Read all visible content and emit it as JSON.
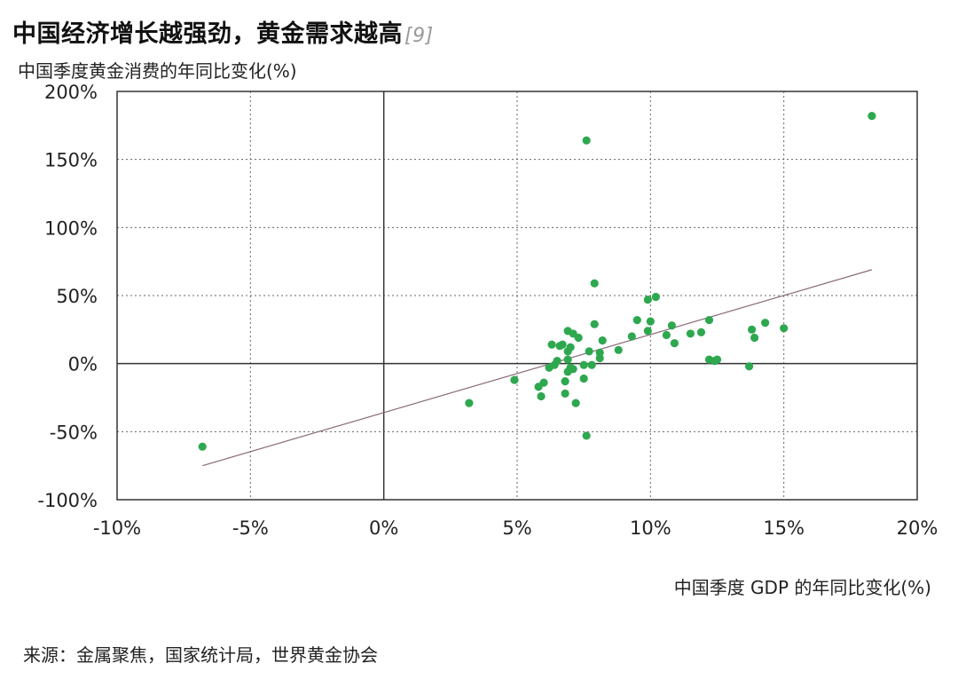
{
  "title": "中国经济增长越强劲，黄金需求越高",
  "title_ref": "[9]",
  "source": "来源：金属聚焦，国家统计局，世界黄金协会",
  "chart_data": {
    "type": "scatter",
    "title": "中国经济增长越强劲，黄金需求越高",
    "xlabel": "中国季度 GDP 的年同比变化(%)",
    "ylabel": "中国季度黄金消费的年同比变化(%)",
    "xlim": [
      -10,
      20
    ],
    "ylim": [
      -100,
      200
    ],
    "x_ticks": [
      -10,
      -5,
      0,
      5,
      10,
      15,
      20
    ],
    "y_ticks": [
      -100,
      -50,
      0,
      50,
      100,
      150,
      200
    ],
    "x_tick_labels": [
      "-10%",
      "-5%",
      "0%",
      "5%",
      "10%",
      "15%",
      "20%"
    ],
    "y_tick_labels": [
      "-100%",
      "-50%",
      "0%",
      "50%",
      "100%",
      "150%",
      "200%"
    ],
    "grid": true,
    "point_color": "#2ea84f",
    "trend_color": "#8a6a7a",
    "trendline": {
      "x": [
        -6.8,
        18.3
      ],
      "y": [
        -75,
        69
      ]
    },
    "points": [
      {
        "x": -6.8,
        "y": -61
      },
      {
        "x": 3.2,
        "y": -29
      },
      {
        "x": 4.9,
        "y": -12
      },
      {
        "x": 5.8,
        "y": -17
      },
      {
        "x": 5.9,
        "y": -24
      },
      {
        "x": 6.0,
        "y": -14
      },
      {
        "x": 6.2,
        "y": -3
      },
      {
        "x": 6.3,
        "y": 14
      },
      {
        "x": 6.4,
        "y": -1
      },
      {
        "x": 6.5,
        "y": 2
      },
      {
        "x": 6.6,
        "y": 13
      },
      {
        "x": 6.7,
        "y": 14
      },
      {
        "x": 6.8,
        "y": -22
      },
      {
        "x": 6.8,
        "y": -13
      },
      {
        "x": 6.9,
        "y": -6
      },
      {
        "x": 6.9,
        "y": 3
      },
      {
        "x": 6.9,
        "y": 9
      },
      {
        "x": 6.9,
        "y": 24
      },
      {
        "x": 7.0,
        "y": -3
      },
      {
        "x": 7.0,
        "y": 12
      },
      {
        "x": 7.1,
        "y": -4
      },
      {
        "x": 7.1,
        "y": 22
      },
      {
        "x": 7.2,
        "y": -29
      },
      {
        "x": 7.3,
        "y": 19
      },
      {
        "x": 7.5,
        "y": -11
      },
      {
        "x": 7.5,
        "y": -1
      },
      {
        "x": 7.6,
        "y": 164
      },
      {
        "x": 7.6,
        "y": -53
      },
      {
        "x": 7.7,
        "y": 9
      },
      {
        "x": 7.8,
        "y": -1
      },
      {
        "x": 7.9,
        "y": 29
      },
      {
        "x": 7.9,
        "y": 59
      },
      {
        "x": 8.1,
        "y": 4
      },
      {
        "x": 8.1,
        "y": 8
      },
      {
        "x": 8.2,
        "y": 17
      },
      {
        "x": 8.8,
        "y": 10
      },
      {
        "x": 9.3,
        "y": 20
      },
      {
        "x": 9.5,
        "y": 32
      },
      {
        "x": 9.9,
        "y": 24
      },
      {
        "x": 9.9,
        "y": 47
      },
      {
        "x": 10.0,
        "y": 31
      },
      {
        "x": 10.2,
        "y": 49
      },
      {
        "x": 10.6,
        "y": 21
      },
      {
        "x": 10.8,
        "y": 28
      },
      {
        "x": 10.9,
        "y": 15
      },
      {
        "x": 11.5,
        "y": 22
      },
      {
        "x": 11.9,
        "y": 23
      },
      {
        "x": 12.2,
        "y": 32
      },
      {
        "x": 12.2,
        "y": 3
      },
      {
        "x": 12.4,
        "y": 2
      },
      {
        "x": 12.5,
        "y": 3
      },
      {
        "x": 13.7,
        "y": -2
      },
      {
        "x": 13.8,
        "y": 25
      },
      {
        "x": 13.9,
        "y": 19
      },
      {
        "x": 14.3,
        "y": 30
      },
      {
        "x": 15.0,
        "y": 26
      },
      {
        "x": 18.3,
        "y": 182
      }
    ]
  }
}
